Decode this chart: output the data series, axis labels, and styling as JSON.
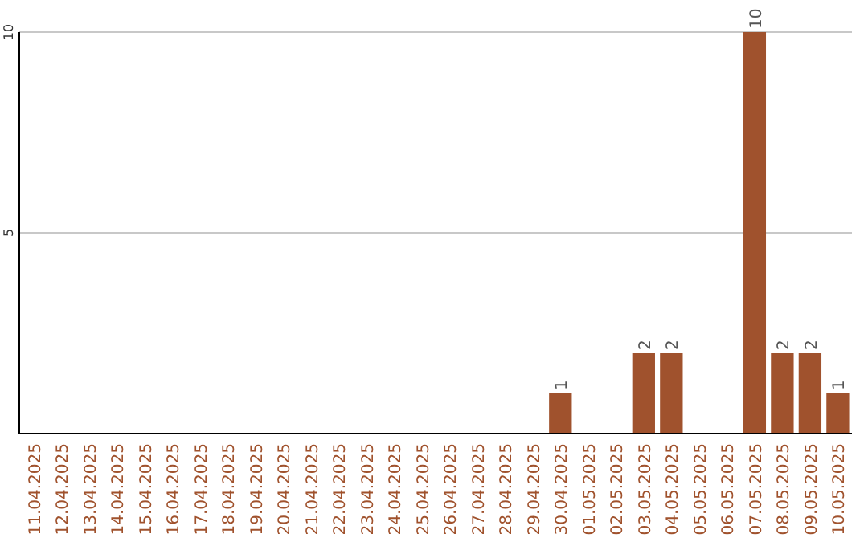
{
  "chart_data": {
    "type": "bar",
    "categories": [
      "11.04.2025",
      "12.04.2025",
      "13.04.2025",
      "14.04.2025",
      "15.04.2025",
      "16.04.2025",
      "17.04.2025",
      "18.04.2025",
      "19.04.2025",
      "20.04.2025",
      "21.04.2025",
      "22.04.2025",
      "23.04.2025",
      "24.04.2025",
      "25.04.2025",
      "26.04.2025",
      "27.04.2025",
      "28.04.2025",
      "29.04.2025",
      "30.04.2025",
      "01.05.2025",
      "02.05.2025",
      "03.05.2025",
      "04.05.2025",
      "05.05.2025",
      "06.05.2025",
      "07.05.2025",
      "08.05.2025",
      "09.05.2025",
      "10.05.2025"
    ],
    "values": [
      0,
      0,
      0,
      0,
      0,
      0,
      0,
      0,
      0,
      0,
      0,
      0,
      0,
      0,
      0,
      0,
      0,
      0,
      0,
      1,
      0,
      0,
      2,
      2,
      0,
      0,
      10,
      2,
      2,
      1
    ],
    "value_labels": [
      null,
      null,
      null,
      null,
      null,
      null,
      null,
      null,
      null,
      null,
      null,
      null,
      null,
      null,
      null,
      null,
      null,
      null,
      null,
      "1",
      null,
      null,
      "2",
      "2",
      null,
      null,
      "10",
      "2",
      "2",
      "1"
    ],
    "color": "#a0522d",
    "ylim": [
      0,
      10
    ],
    "yticks": [
      5,
      10
    ],
    "grid": "y"
  }
}
